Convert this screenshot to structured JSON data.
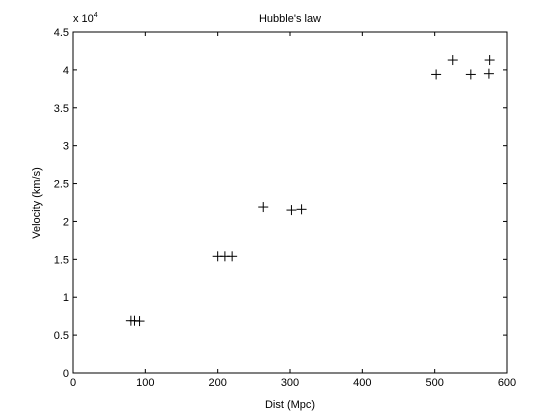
{
  "chart_data": {
    "type": "scatter",
    "title": "Hubble's law",
    "xlabel": "Dist (Mpc)",
    "ylabel": "Velocity (km/s)",
    "xlim": [
      0,
      600
    ],
    "ylim": [
      0,
      45000
    ],
    "y_exponent_label": "x 10",
    "y_exponent_power": "4",
    "xticks": [
      0,
      100,
      200,
      300,
      400,
      500,
      600
    ],
    "xtick_labels": [
      "0",
      "100",
      "200",
      "300",
      "400",
      "500",
      "600"
    ],
    "yticks": [
      0,
      5000,
      10000,
      15000,
      20000,
      25000,
      30000,
      35000,
      40000,
      45000
    ],
    "ytick_labels": [
      "0",
      "0.5",
      "1",
      "1.5",
      "2",
      "2.5",
      "3",
      "3.5",
      "4",
      "4.5"
    ],
    "grid": false,
    "marker": "+",
    "marker_color": "#000000",
    "points": [
      {
        "x": 80,
        "y": 6900
      },
      {
        "x": 85,
        "y": 6900
      },
      {
        "x": 92,
        "y": 6850
      },
      {
        "x": 200,
        "y": 15400
      },
      {
        "x": 210,
        "y": 15400
      },
      {
        "x": 220,
        "y": 15400
      },
      {
        "x": 263,
        "y": 21900
      },
      {
        "x": 302,
        "y": 21500
      },
      {
        "x": 316,
        "y": 21600
      },
      {
        "x": 502,
        "y": 39400
      },
      {
        "x": 525,
        "y": 41300
      },
      {
        "x": 550,
        "y": 39400
      },
      {
        "x": 575,
        "y": 39500
      },
      {
        "x": 576,
        "y": 41300
      }
    ]
  }
}
